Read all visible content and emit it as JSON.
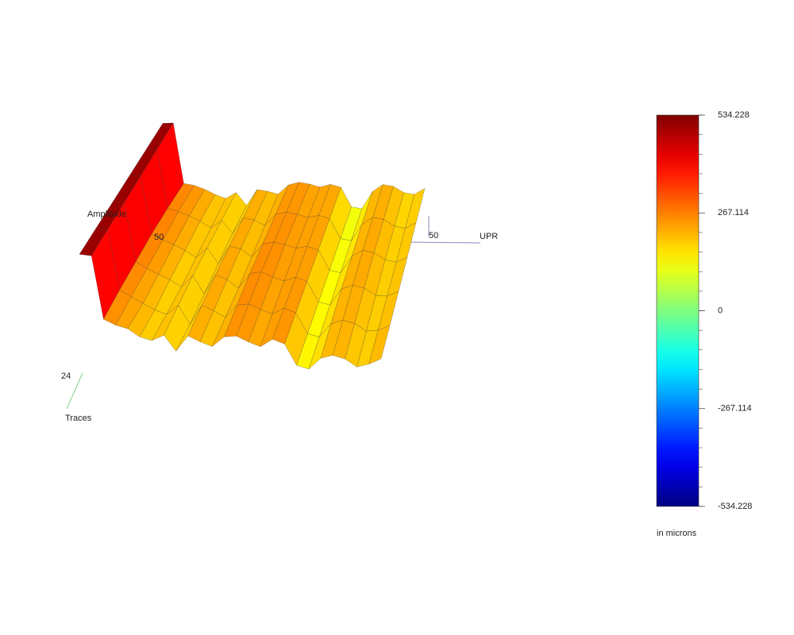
{
  "chart_data": {
    "type": "surface3d",
    "axis_labels": {
      "z": "Amplitude",
      "x": "UPR",
      "y": "Traces"
    },
    "axis_tick_labels": {
      "x_end": "50",
      "y_end": "24",
      "z_mark": "50"
    },
    "colormap": "jet",
    "clim": [
      -534.228,
      534.228
    ],
    "cticks": [
      534.228,
      267.114,
      0,
      -267.114,
      -534.228
    ],
    "cbar_minor_divisions": 5,
    "colorbar_label": "in microns",
    "z": [
      [
        534.228,
        534.228,
        255,
        235,
        225,
        195,
        185,
        215,
        150,
        225,
        205,
        190,
        240,
        250,
        230,
        215,
        255,
        240,
        150,
        140,
        195,
        215,
        205,
        175,
        195,
        225
      ],
      [
        534.228,
        534.228,
        265,
        240,
        215,
        190,
        175,
        220,
        140,
        230,
        210,
        185,
        245,
        255,
        235,
        220,
        250,
        235,
        145,
        135,
        200,
        220,
        210,
        180,
        190,
        215
      ],
      [
        534.228,
        534.228,
        270,
        245,
        220,
        200,
        170,
        225,
        145,
        235,
        215,
        180,
        250,
        260,
        240,
        225,
        245,
        230,
        140,
        130,
        205,
        225,
        215,
        185,
        185,
        210
      ],
      [
        534.228,
        534.228,
        275,
        250,
        230,
        205,
        175,
        220,
        150,
        230,
        220,
        185,
        245,
        255,
        245,
        230,
        240,
        225,
        135,
        125,
        200,
        230,
        220,
        190,
        180,
        205
      ],
      [
        534.228,
        534.228,
        270,
        255,
        235,
        210,
        180,
        215,
        155,
        225,
        215,
        190,
        240,
        250,
        240,
        225,
        235,
        220,
        130,
        120,
        195,
        225,
        215,
        185,
        175,
        200
      ],
      [
        534.228,
        534.228,
        260,
        250,
        230,
        205,
        185,
        210,
        150,
        220,
        210,
        195,
        235,
        245,
        235,
        220,
        230,
        215,
        125,
        115,
        190,
        220,
        210,
        180,
        170,
        195
      ]
    ]
  }
}
